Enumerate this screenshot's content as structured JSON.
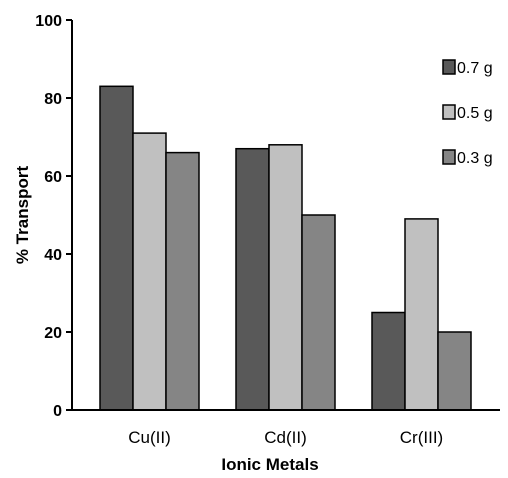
{
  "chart_data": {
    "type": "bar",
    "title": "",
    "xlabel": "Ionic Metals",
    "ylabel": "% Transport",
    "ylim": [
      0,
      100
    ],
    "yticks": [
      0,
      20,
      40,
      60,
      80,
      100
    ],
    "grid": false,
    "legend_position": "right",
    "categories": [
      "Cu(II)",
      "Cd(II)",
      "Cr(III)"
    ],
    "series": [
      {
        "name": "0.7 g",
        "color": "#595959",
        "values": [
          83,
          67,
          25
        ]
      },
      {
        "name": "0.5 g",
        "color": "#c0c0c0",
        "values": [
          71,
          68,
          49
        ]
      },
      {
        "name": "0.3 g",
        "color": "#858585",
        "values": [
          66,
          50,
          20
        ]
      }
    ]
  }
}
